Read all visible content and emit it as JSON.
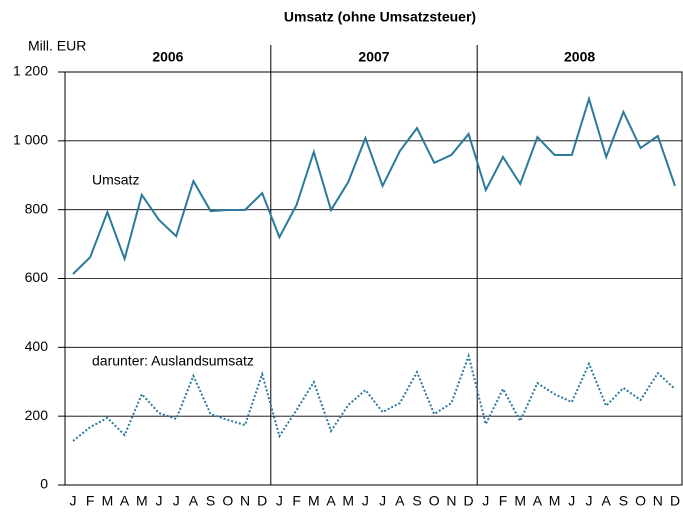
{
  "chart_data": {
    "type": "line",
    "title": "Umsatz (ohne Umsatzsteuer)",
    "y_label": "Mill. EUR",
    "groups": [
      "2006",
      "2007",
      "2008"
    ],
    "categories": [
      "J",
      "F",
      "M",
      "A",
      "M",
      "J",
      "J",
      "A",
      "S",
      "O",
      "N",
      "D",
      "J",
      "F",
      "M",
      "A",
      "M",
      "J",
      "J",
      "A",
      "S",
      "O",
      "N",
      "D",
      "J",
      "F",
      "M",
      "A",
      "M",
      "J",
      "J",
      "A",
      "S",
      "O",
      "N",
      "D"
    ],
    "series": [
      {
        "name": "Umsatz",
        "color": "#2b7a9c",
        "dash": "solid",
        "values": [
          613,
          662,
          793,
          657,
          843,
          770,
          723,
          883,
          796,
          799,
          799,
          848,
          720,
          814,
          968,
          799,
          880,
          1008,
          869,
          970,
          1037,
          936,
          959,
          1020,
          857,
          953,
          875,
          1011,
          959,
          959,
          1122,
          953,
          1084,
          979,
          1014,
          869
        ]
      },
      {
        "name": "darunter: Auslandsumsatz",
        "color": "#2b7a9c",
        "dash": "dotted",
        "values": [
          128,
          168,
          195,
          145,
          264,
          209,
          192,
          317,
          206,
          189,
          174,
          322,
          142,
          218,
          299,
          157,
          232,
          276,
          212,
          238,
          328,
          206,
          238,
          375,
          177,
          279,
          186,
          296,
          264,
          241,
          352,
          230,
          282,
          247,
          325,
          279
        ]
      }
    ],
    "ylim": [
      0,
      1200
    ],
    "yticks": [
      0,
      200,
      400,
      600,
      800,
      {
        "value": 1000,
        "label": "1 000"
      },
      {
        "value": 1200,
        "label": "1 200"
      }
    ],
    "grid": true
  }
}
